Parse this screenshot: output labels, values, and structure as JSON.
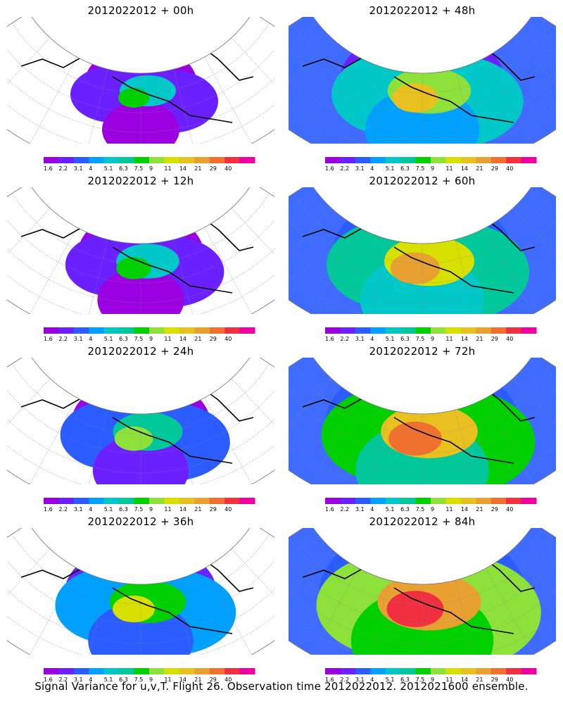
{
  "panels": [
    {
      "title": "2012022012 + 00h",
      "level": 0
    },
    {
      "title": "2012022012 + 48h",
      "level": 4
    },
    {
      "title": "2012022012 + 12h",
      "level": 1
    },
    {
      "title": "2012022012 + 60h",
      "level": 5
    },
    {
      "title": "2012022012 + 24h",
      "level": 2
    },
    {
      "title": "2012022012 + 72h",
      "level": 6
    },
    {
      "title": "2012022012 + 36h",
      "level": 3
    },
    {
      "title": "2012022012 + 84h",
      "level": 7
    }
  ],
  "colorbar": {
    "labels": [
      "1.6",
      "2.2",
      "3.1",
      "4",
      "5.1",
      "6.3",
      "7.5",
      "9",
      "11",
      "14",
      "21",
      "29",
      "40"
    ],
    "colors": [
      "#9a00e0",
      "#6b20ff",
      "#2a5cff",
      "#00a0ff",
      "#00c8c8",
      "#00c89a",
      "#00d000",
      "#8ee03a",
      "#d8e000",
      "#e8c020",
      "#e8a030",
      "#f07030",
      "#f03040",
      "#f000a0"
    ]
  },
  "caption": "Signal Variance for u,v,T. Flight 26. Observation time 2012022012. 2012021600 ensemble."
}
